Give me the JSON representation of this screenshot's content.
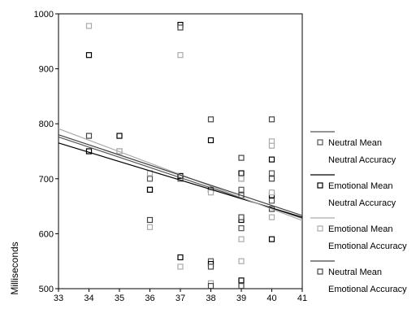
{
  "chart_data": {
    "type": "scatter",
    "ylabel": "Milliseconds",
    "xlabel": "",
    "xlim": [
      33,
      41
    ],
    "ylim": [
      500,
      1000
    ],
    "xticks": [
      33,
      34,
      35,
      36,
      37,
      38,
      39,
      40,
      41
    ],
    "yticks": [
      500,
      600,
      700,
      800,
      900,
      1000
    ],
    "grid": false,
    "legend_position": "right",
    "series": [
      {
        "name": "Neutral Mean Neutral Accuracy",
        "label_line1": "Neutral Mean",
        "label_line2": "Neutral Accuracy",
        "color": "#555555",
        "points": [
          [
            34,
            750
          ],
          [
            35,
            750
          ],
          [
            36,
            700
          ],
          [
            36,
            680
          ],
          [
            37,
            700
          ],
          [
            38,
            680
          ],
          [
            38,
            550
          ],
          [
            39,
            700
          ],
          [
            39,
            680
          ],
          [
            39,
            610
          ],
          [
            40,
            710
          ],
          [
            40,
            660
          ]
        ],
        "fit": [
          [
            33,
            776
          ],
          [
            41,
            628
          ]
        ]
      },
      {
        "name": "Emotional Mean Neutral Accuracy",
        "label_line1": "Emotional Mean",
        "label_line2": "Neutral Accuracy",
        "color": "#000000",
        "points": [
          [
            34,
            925
          ],
          [
            34,
            750
          ],
          [
            35,
            778
          ],
          [
            36,
            680
          ],
          [
            37,
            980
          ],
          [
            37,
            705
          ],
          [
            37,
            557
          ],
          [
            38,
            770
          ],
          [
            38,
            680
          ],
          [
            38,
            545
          ],
          [
            39,
            710
          ],
          [
            39,
            625
          ],
          [
            39,
            515
          ],
          [
            40,
            735
          ],
          [
            40,
            670
          ],
          [
            40,
            590
          ]
        ],
        "fit": [
          [
            33,
            765
          ],
          [
            41,
            630
          ]
        ]
      },
      {
        "name": "Emotional Mean Emotional Accuracy",
        "label_line1": "Emotional Mean",
        "label_line2": "Emotional Accuracy",
        "color": "#aaaaaa",
        "points": [
          [
            34,
            978
          ],
          [
            35,
            750
          ],
          [
            36,
            612
          ],
          [
            36,
            710
          ],
          [
            37,
            925
          ],
          [
            37,
            540
          ],
          [
            38,
            510
          ],
          [
            38,
            675
          ],
          [
            39,
            590
          ],
          [
            39,
            550
          ],
          [
            39,
            700
          ],
          [
            40,
            768
          ],
          [
            40,
            760
          ],
          [
            40,
            675
          ],
          [
            40,
            630
          ]
        ],
        "fit": [
          [
            33,
            791
          ],
          [
            41,
            624
          ]
        ]
      },
      {
        "name": "Neutral Mean Emotional Accuracy",
        "label_line1": "Neutral Mean",
        "label_line2": "Emotional Accuracy",
        "color": "#444444",
        "points": [
          [
            34,
            778
          ],
          [
            36,
            625
          ],
          [
            37,
            975
          ],
          [
            38,
            808
          ],
          [
            38,
            540
          ],
          [
            38,
            505
          ],
          [
            39,
            738
          ],
          [
            39,
            670
          ],
          [
            39,
            630
          ],
          [
            39,
            505
          ],
          [
            40,
            808
          ],
          [
            40,
            700
          ],
          [
            40,
            645
          ]
        ],
        "fit": [
          [
            33,
            780
          ],
          [
            41,
            633
          ]
        ]
      }
    ]
  }
}
